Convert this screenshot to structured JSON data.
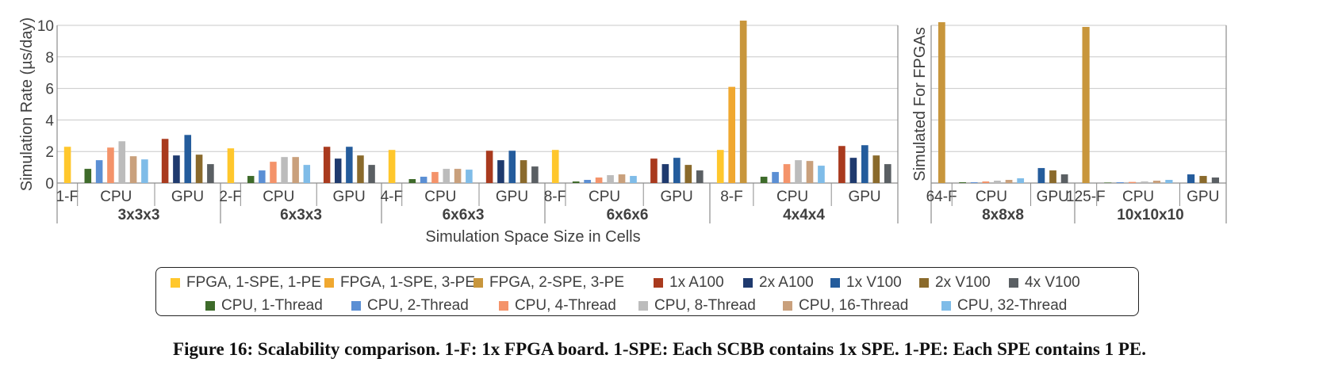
{
  "chart_data": [
    {
      "type": "bar",
      "ylabel": "Simulation Rate (µs/day)",
      "xlabel": "Simulation Space Size in Cells",
      "ylim": [
        0,
        10
      ],
      "yticks": [
        0,
        2,
        4,
        6,
        8,
        10
      ],
      "grid": true,
      "groups": [
        {
          "name": "3x3x3",
          "subgroups": [
            {
              "label": "1-F",
              "bars": [
                {
                  "series": "FPGA, 1-SPE, 1-PE",
                  "value": 2.3
                }
              ]
            },
            {
              "label": "CPU",
              "bars": [
                {
                  "series": "CPU, 1-Thread",
                  "value": 0.9
                },
                {
                  "series": "CPU, 2-Thread",
                  "value": 1.45
                },
                {
                  "series": "CPU, 4-Thread",
                  "value": 2.25
                },
                {
                  "series": "CPU, 8-Thread",
                  "value": 2.65
                },
                {
                  "series": "CPU, 16-Thread",
                  "value": 1.7
                },
                {
                  "series": "CPU, 32-Thread",
                  "value": 1.5
                }
              ]
            },
            {
              "label": "GPU",
              "bars": [
                {
                  "series": "1x A100",
                  "value": 2.8
                },
                {
                  "series": "2x A100",
                  "value": 1.75
                },
                {
                  "series": "1x V100",
                  "value": 3.05
                },
                {
                  "series": "2x V100",
                  "value": 1.8
                },
                {
                  "series": "4x V100",
                  "value": 1.2
                }
              ]
            }
          ]
        },
        {
          "name": "6x3x3",
          "subgroups": [
            {
              "label": "2-F",
              "bars": [
                {
                  "series": "FPGA, 1-SPE, 1-PE",
                  "value": 2.2
                }
              ]
            },
            {
              "label": "CPU",
              "bars": [
                {
                  "series": "CPU, 1-Thread",
                  "value": 0.45
                },
                {
                  "series": "CPU, 2-Thread",
                  "value": 0.8
                },
                {
                  "series": "CPU, 4-Thread",
                  "value": 1.35
                },
                {
                  "series": "CPU, 8-Thread",
                  "value": 1.65
                },
                {
                  "series": "CPU, 16-Thread",
                  "value": 1.65
                },
                {
                  "series": "CPU, 32-Thread",
                  "value": 1.15
                }
              ]
            },
            {
              "label": "GPU",
              "bars": [
                {
                  "series": "1x A100",
                  "value": 2.3
                },
                {
                  "series": "2x A100",
                  "value": 1.55
                },
                {
                  "series": "1x V100",
                  "value": 2.3
                },
                {
                  "series": "2x V100",
                  "value": 1.75
                },
                {
                  "series": "4x V100",
                  "value": 1.15
                }
              ]
            }
          ]
        },
        {
          "name": "6x6x3",
          "subgroups": [
            {
              "label": "4-F",
              "bars": [
                {
                  "series": "FPGA, 1-SPE, 1-PE",
                  "value": 2.1
                }
              ]
            },
            {
              "label": "CPU",
              "bars": [
                {
                  "series": "CPU, 1-Thread",
                  "value": 0.25
                },
                {
                  "series": "CPU, 2-Thread",
                  "value": 0.4
                },
                {
                  "series": "CPU, 4-Thread",
                  "value": 0.7
                },
                {
                  "series": "CPU, 8-Thread",
                  "value": 0.9
                },
                {
                  "series": "CPU, 16-Thread",
                  "value": 0.9
                },
                {
                  "series": "CPU, 32-Thread",
                  "value": 0.85
                }
              ]
            },
            {
              "label": "GPU",
              "bars": [
                {
                  "series": "1x A100",
                  "value": 2.05
                },
                {
                  "series": "2x A100",
                  "value": 1.45
                },
                {
                  "series": "1x V100",
                  "value": 2.05
                },
                {
                  "series": "2x V100",
                  "value": 1.45
                },
                {
                  "series": "4x V100",
                  "value": 1.05
                }
              ]
            }
          ]
        },
        {
          "name": "6x6x6",
          "subgroups": [
            {
              "label": "8-F",
              "bars": [
                {
                  "series": "FPGA, 1-SPE, 1-PE",
                  "value": 2.1
                }
              ]
            },
            {
              "label": "CPU",
              "bars": [
                {
                  "series": "CPU, 1-Thread",
                  "value": 0.1
                },
                {
                  "series": "CPU, 2-Thread",
                  "value": 0.2
                },
                {
                  "series": "CPU, 4-Thread",
                  "value": 0.35
                },
                {
                  "series": "CPU, 8-Thread",
                  "value": 0.5
                },
                {
                  "series": "CPU, 16-Thread",
                  "value": 0.55
                },
                {
                  "series": "CPU, 32-Thread",
                  "value": 0.45
                }
              ]
            },
            {
              "label": "GPU",
              "bars": [
                {
                  "series": "1x A100",
                  "value": 1.55
                },
                {
                  "series": "2x A100",
                  "value": 1.2
                },
                {
                  "series": "1x V100",
                  "value": 1.6
                },
                {
                  "series": "2x V100",
                  "value": 1.15
                },
                {
                  "series": "4x V100",
                  "value": 0.8
                }
              ]
            }
          ]
        },
        {
          "name": "4x4x4",
          "subgroups": [
            {
              "label": "8-F",
              "bars": [
                {
                  "series": "FPGA, 1-SPE, 1-PE",
                  "value": 2.1
                },
                {
                  "series": "FPGA, 1-SPE, 3-PE",
                  "value": 6.1
                },
                {
                  "series": "FPGA, 2-SPE, 3-PE",
                  "value": 10.3
                }
              ]
            },
            {
              "label": "CPU",
              "bars": [
                {
                  "series": "CPU, 1-Thread",
                  "value": 0.4
                },
                {
                  "series": "CPU, 2-Thread",
                  "value": 0.7
                },
                {
                  "series": "CPU, 4-Thread",
                  "value": 1.2
                },
                {
                  "series": "CPU, 8-Thread",
                  "value": 1.45
                },
                {
                  "series": "CPU, 16-Thread",
                  "value": 1.4
                },
                {
                  "series": "CPU, 32-Thread",
                  "value": 1.1
                }
              ]
            },
            {
              "label": "GPU",
              "bars": [
                {
                  "series": "1x A100",
                  "value": 2.35
                },
                {
                  "series": "2x A100",
                  "value": 1.6
                },
                {
                  "series": "1x V100",
                  "value": 2.4
                },
                {
                  "series": "2x V100",
                  "value": 1.75
                },
                {
                  "series": "4x V100",
                  "value": 1.2
                }
              ]
            }
          ]
        }
      ]
    },
    {
      "type": "bar",
      "ylabel": "Simulated For FPGAs",
      "ylim": [
        0,
        10
      ],
      "grid": true,
      "groups": [
        {
          "name": "8x8x8",
          "subgroups": [
            {
              "label": "64-F",
              "bars": [
                {
                  "series": "FPGA, 2-SPE, 3-PE",
                  "value": 10.2
                }
              ]
            },
            {
              "label": "CPU",
              "bars": [
                {
                  "series": "CPU, 1-Thread",
                  "value": 0.05
                },
                {
                  "series": "CPU, 2-Thread",
                  "value": 0.05
                },
                {
                  "series": "CPU, 4-Thread",
                  "value": 0.1
                },
                {
                  "series": "CPU, 8-Thread",
                  "value": 0.15
                },
                {
                  "series": "CPU, 16-Thread",
                  "value": 0.2
                },
                {
                  "series": "CPU, 32-Thread",
                  "value": 0.3
                }
              ]
            },
            {
              "label": "GPU",
              "bars": [
                {
                  "series": "1x V100",
                  "value": 0.95
                },
                {
                  "series": "2x V100",
                  "value": 0.8
                },
                {
                  "series": "4x V100",
                  "value": 0.55
                }
              ]
            }
          ]
        },
        {
          "name": "10x10x10",
          "subgroups": [
            {
              "label": "125-F",
              "bars": [
                {
                  "series": "FPGA, 2-SPE, 3-PE",
                  "value": 9.9
                }
              ]
            },
            {
              "label": "CPU",
              "bars": [
                {
                  "series": "CPU, 1-Thread",
                  "value": 0.03
                },
                {
                  "series": "CPU, 2-Thread",
                  "value": 0.05
                },
                {
                  "series": "CPU, 4-Thread",
                  "value": 0.07
                },
                {
                  "series": "CPU, 8-Thread",
                  "value": 0.1
                },
                {
                  "series": "CPU, 16-Thread",
                  "value": 0.15
                },
                {
                  "series": "CPU, 32-Thread",
                  "value": 0.2
                }
              ]
            },
            {
              "label": "GPU",
              "bars": [
                {
                  "series": "1x V100",
                  "value": 0.55
                },
                {
                  "series": "2x V100",
                  "value": 0.45
                },
                {
                  "series": "4x V100",
                  "value": 0.35
                }
              ]
            }
          ]
        }
      ]
    }
  ],
  "legend": {
    "rows": [
      [
        {
          "label": "FPGA, 1-SPE, 1-PE",
          "color": "#FFC72C"
        },
        {
          "label": "FPGA, 1-SPE, 3-PE",
          "color": "#F0A830"
        },
        {
          "label": "FPGA, 2-SPE, 3-PE",
          "color": "#C8963C"
        },
        {
          "label": "1x A100",
          "color": "#A93A1E"
        },
        {
          "label": "2x A100",
          "color": "#1F3A6E"
        },
        {
          "label": "1x V100",
          "color": "#245C9C"
        },
        {
          "label": "2x V100",
          "color": "#8A6A2C"
        },
        {
          "label": "4x V100",
          "color": "#5A5F63"
        }
      ],
      [
        {
          "label": "CPU, 1-Thread",
          "color": "#3E6B2A"
        },
        {
          "label": "CPU, 2-Thread",
          "color": "#5B8FD4"
        },
        {
          "label": "CPU, 4-Thread",
          "color": "#F4936A"
        },
        {
          "label": "CPU, 8-Thread",
          "color": "#BCBCBC"
        },
        {
          "label": "CPU, 16-Thread",
          "color": "#C9A07C"
        },
        {
          "label": "CPU, 32-Thread",
          "color": "#7FBCE8"
        }
      ]
    ]
  },
  "caption": "Figure 16: Scalability comparison. 1-F: 1x FPGA board. 1-SPE: Each SCBB contains 1x SPE. 1-PE: Each SPE contains 1 PE."
}
